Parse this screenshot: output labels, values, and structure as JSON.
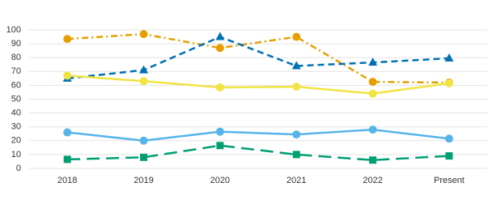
{
  "chart_data": {
    "type": "line",
    "categories": [
      "2018",
      "2019",
      "2020",
      "2021",
      "2022",
      "Present"
    ],
    "series": [
      {
        "color": "#E69F00",
        "marker": "circle",
        "dash": "8 4 2 4",
        "values": [
          93.5,
          97,
          87,
          95,
          62.5,
          62
        ]
      },
      {
        "color": "#0072B2",
        "marker": "triangle",
        "dash": "8 5",
        "values": [
          65,
          71,
          95,
          74,
          76.5,
          79.5
        ]
      },
      {
        "color": "#F0E442",
        "marker": "circle",
        "dash": "none",
        "values": [
          67,
          63,
          58.5,
          59,
          54,
          61.5
        ]
      },
      {
        "color": "#56B4E9",
        "marker": "circle",
        "dash": "none",
        "values": [
          26,
          20,
          26.5,
          24.5,
          28,
          21.5
        ]
      },
      {
        "color": "#009E73",
        "marker": "square",
        "dash": "16 8",
        "values": [
          6.5,
          8,
          16.5,
          10,
          6,
          9
        ]
      }
    ],
    "ylim": [
      0,
      100
    ],
    "yticks": [
      0,
      10,
      20,
      30,
      40,
      50,
      60,
      70,
      80,
      90,
      100
    ],
    "grid": true
  }
}
